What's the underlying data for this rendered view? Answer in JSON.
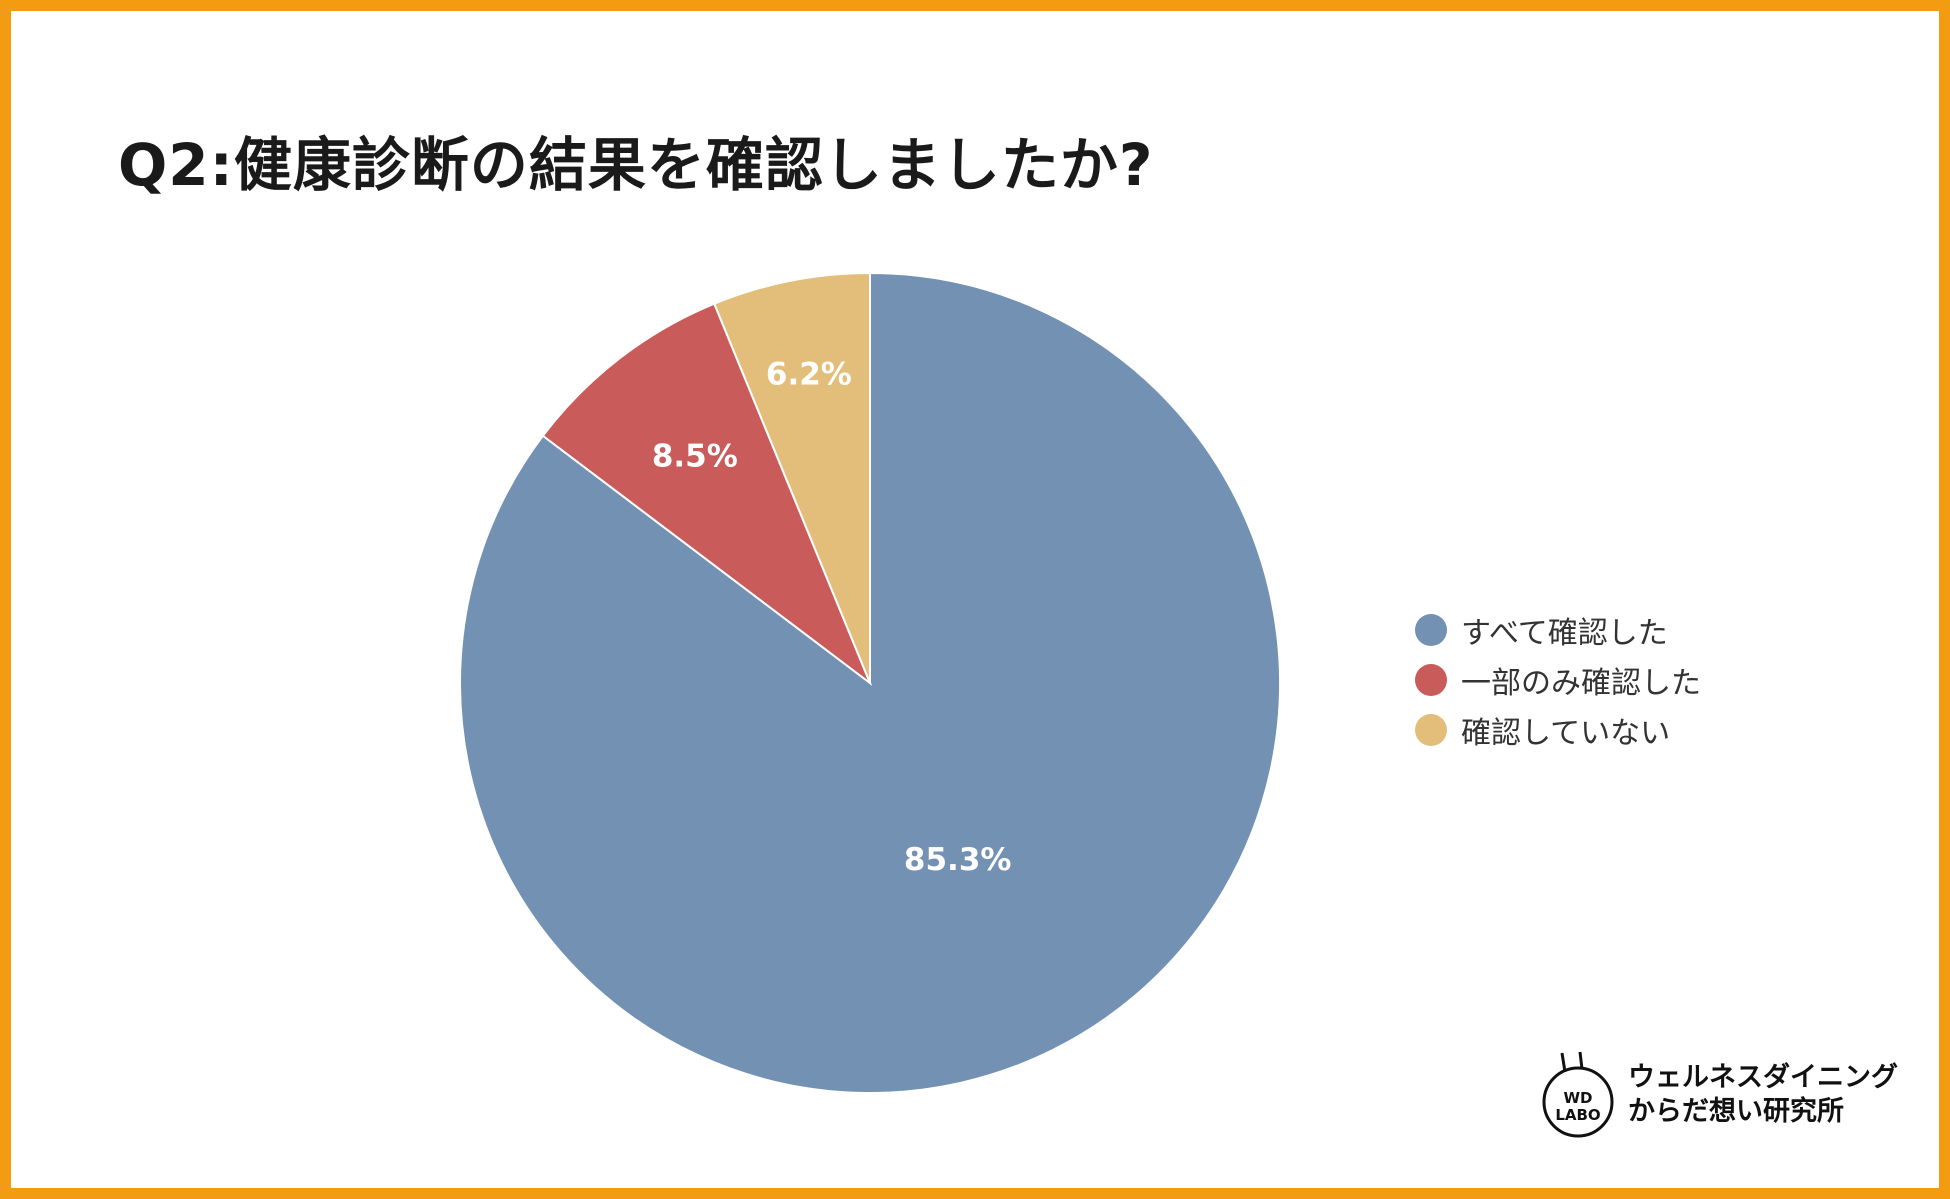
{
  "title": "Q2:健康診断の結果を確認しましたか?",
  "chart_data": {
    "type": "pie",
    "title": "Q2:健康診断の結果を確認しましたか?",
    "start_angle": "12 o'clock, clockwise",
    "legend_position": "right",
    "slices": [
      {
        "label": "すべて確認した",
        "value": 85.3,
        "display": "85.3%",
        "color": "#7391b3"
      },
      {
        "label": "一部のみ確認した",
        "value": 8.5,
        "display": "8.5%",
        "color": "#c95b5b"
      },
      {
        "label": "確認していない",
        "value": 6.2,
        "display": "6.2%",
        "color": "#e2be7a"
      }
    ]
  },
  "logo": {
    "mark_line1": "WD",
    "mark_line2": "LABO",
    "line1": "ウェルネスダイニング",
    "line2": "からだ想い研究所"
  },
  "colors": {
    "frame": "#f39c12"
  }
}
